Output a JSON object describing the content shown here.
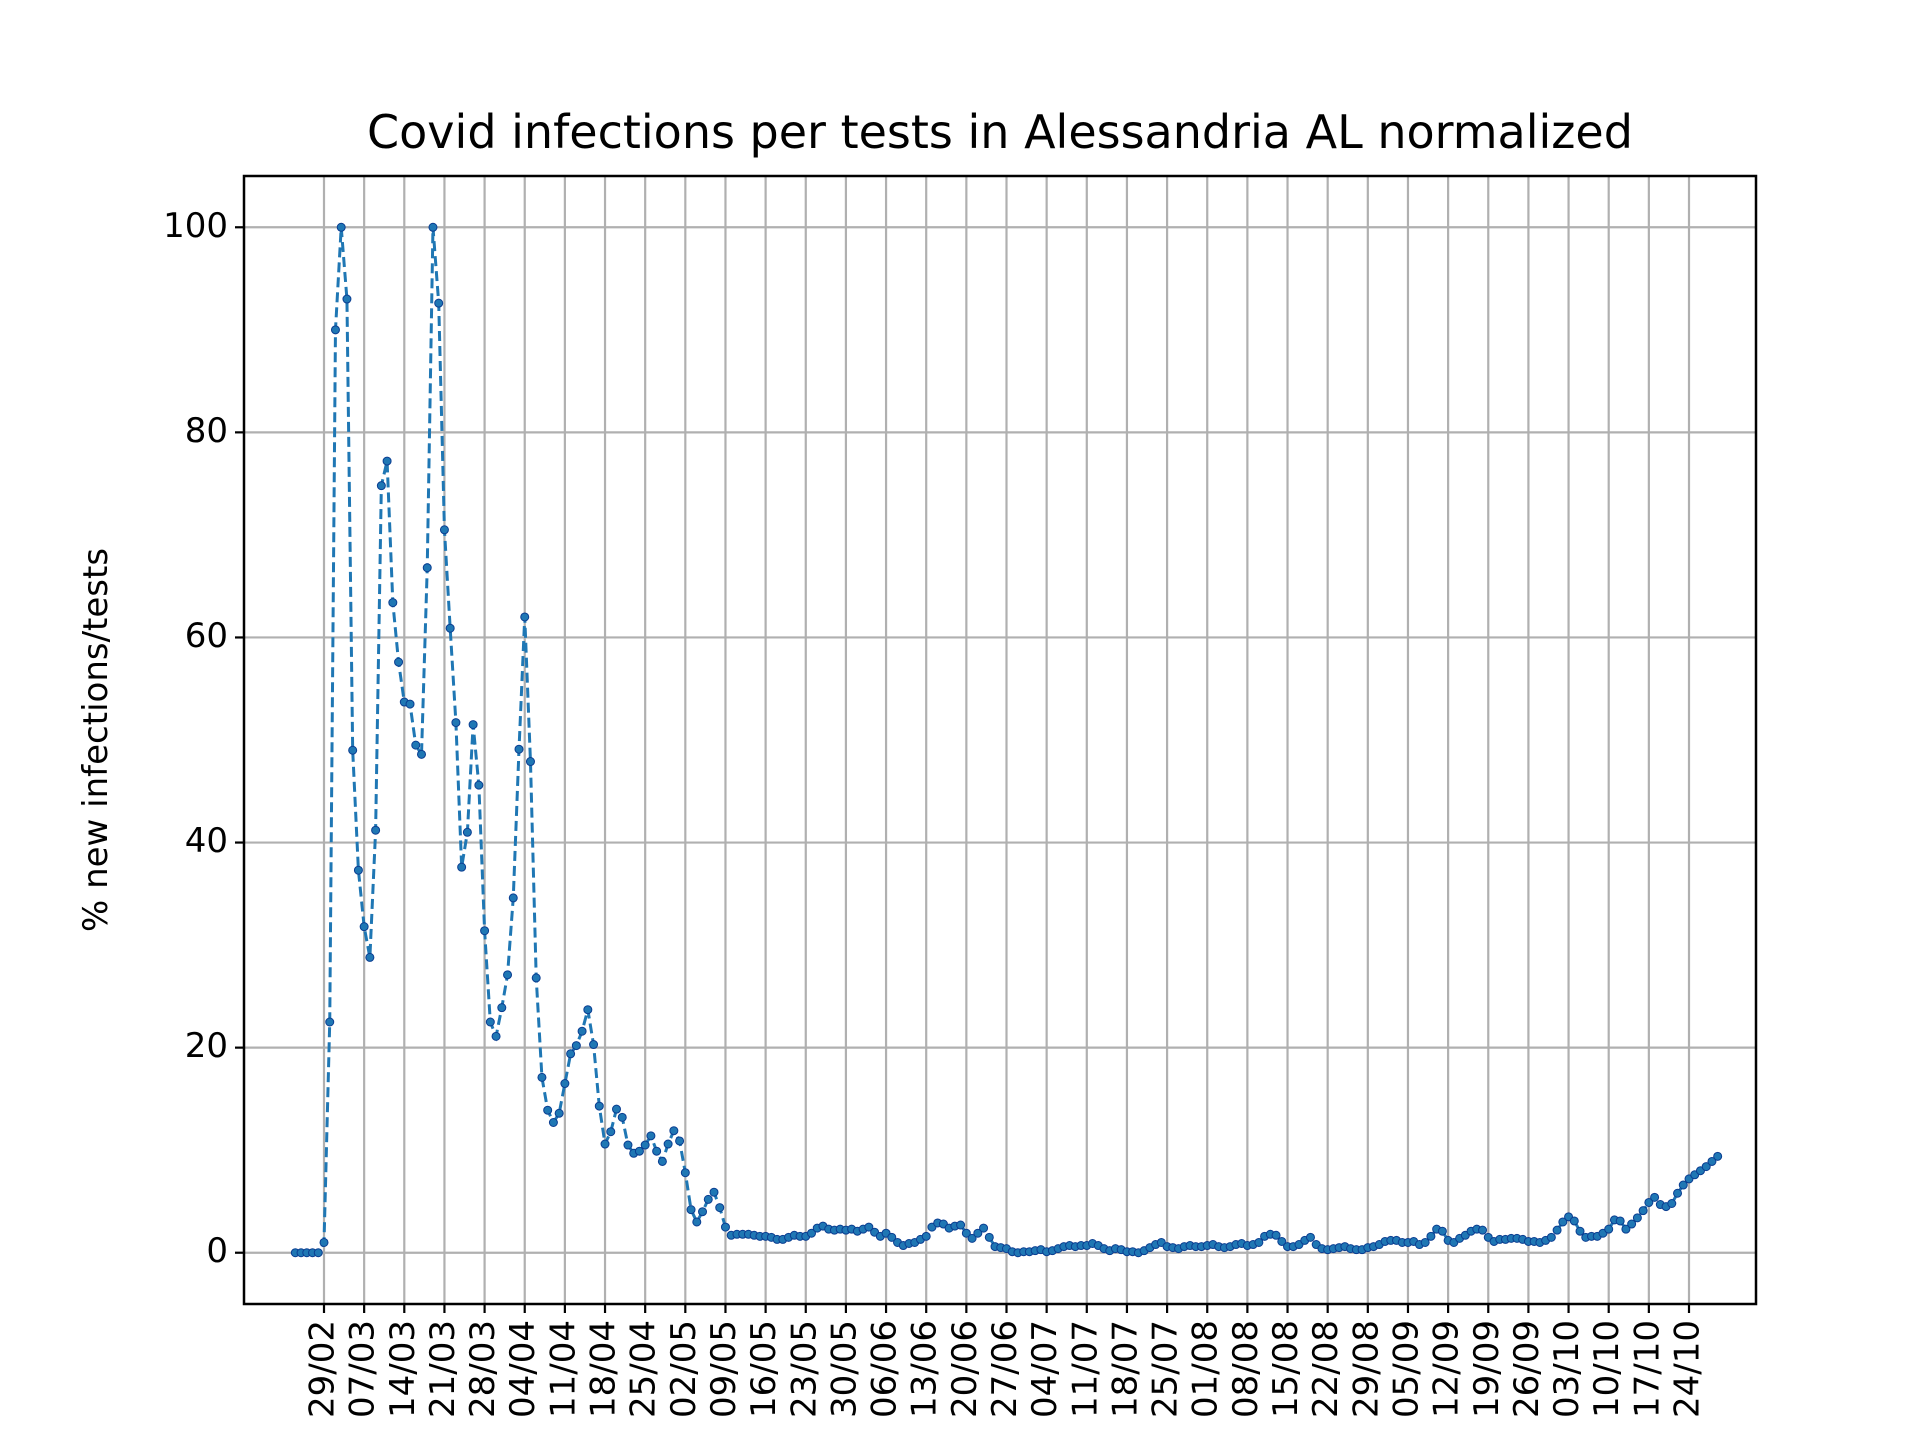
{
  "chart_data": {
    "type": "line",
    "title": "Covid infections per tests in Alessandria AL normalized",
    "ylabel": "% new infections/tests",
    "xlabel": "",
    "ylim": [
      -5,
      105
    ],
    "yticks": [
      0,
      20,
      40,
      60,
      80,
      100
    ],
    "grid": true,
    "start_date": "2020-02-24",
    "xtick_labels": [
      "29/02",
      "07/03",
      "14/03",
      "21/03",
      "28/03",
      "04/04",
      "11/04",
      "18/04",
      "25/04",
      "02/05",
      "09/05",
      "16/05",
      "23/05",
      "30/05",
      "06/06",
      "13/06",
      "20/06",
      "27/06",
      "04/07",
      "11/07",
      "18/07",
      "25/07",
      "01/08",
      "08/08",
      "15/08",
      "22/08",
      "29/08",
      "05/09",
      "12/09",
      "19/09",
      "26/09",
      "03/10",
      "10/10",
      "17/10",
      "24/10"
    ],
    "series": [
      {
        "name": "",
        "color": "#1f77b4",
        "marker": "point",
        "linestyle": "dashed",
        "values": [
          0,
          0,
          0,
          0,
          0,
          1.0,
          22.5,
          90,
          100,
          93,
          49,
          37.3,
          31.8,
          28.8,
          41.2,
          74.8,
          77.2,
          63.4,
          57.6,
          53.7,
          53.5,
          49.5,
          48.6,
          66.8,
          100,
          92.6,
          70.5,
          60.9,
          51.7,
          37.6,
          41.0,
          51.5,
          45.6,
          31.4,
          22.5,
          21.1,
          23.9,
          27.1,
          34.6,
          49.1,
          62.0,
          47.9,
          26.8,
          17.1,
          13.9,
          12.7,
          13.6,
          16.5,
          19.4,
          20.2,
          21.6,
          23.7,
          20.3,
          14.3,
          10.6,
          11.8,
          14.0,
          13.2,
          10.5,
          9.7,
          9.9,
          10.5,
          11.4,
          9.9,
          8.9,
          10.6,
          11.9,
          10.9,
          7.8,
          4.2,
          3.0,
          4.0,
          5.2,
          5.9,
          4.4,
          2.5,
          1.7,
          1.8,
          1.8,
          1.8,
          1.7,
          1.6,
          1.6,
          1.5,
          1.3,
          1.3,
          1.5,
          1.7,
          1.6,
          1.6,
          1.9,
          2.4,
          2.6,
          2.3,
          2.2,
          2.3,
          2.2,
          2.3,
          2.1,
          2.3,
          2.5,
          2.0,
          1.6,
          1.9,
          1.5,
          1.0,
          0.7,
          0.9,
          1.0,
          1.3,
          1.6,
          2.5,
          2.9,
          2.8,
          2.4,
          2.6,
          2.7,
          1.9,
          1.4,
          1.9,
          2.4,
          1.5,
          0.6,
          0.5,
          0.4,
          0.1,
          0,
          0.1,
          0.1,
          0.2,
          0.3,
          0.1,
          0.2,
          0.4,
          0.6,
          0.7,
          0.6,
          0.7,
          0.7,
          0.9,
          0.7,
          0.4,
          0.2,
          0.4,
          0.3,
          0.1,
          0.1,
          0.0,
          0.2,
          0.5,
          0.8,
          1.0,
          0.6,
          0.5,
          0.4,
          0.6,
          0.7,
          0.6,
          0.6,
          0.7,
          0.8,
          0.6,
          0.5,
          0.6,
          0.8,
          0.9,
          0.7,
          0.8,
          1.0,
          1.6,
          1.8,
          1.7,
          1.1,
          0.6,
          0.6,
          0.8,
          1.2,
          1.5,
          0.8,
          0.4,
          0.3,
          0.4,
          0.5,
          0.6,
          0.4,
          0.3,
          0.3,
          0.5,
          0.6,
          0.8,
          1.1,
          1.2,
          1.2,
          1.0,
          1.0,
          1.1,
          0.8,
          1.0,
          1.6,
          2.3,
          2.1,
          1.2,
          1.0,
          1.4,
          1.7,
          2.1,
          2.3,
          2.2,
          1.5,
          1.1,
          1.3,
          1.3,
          1.4,
          1.4,
          1.3,
          1.1,
          1.1,
          1.0,
          1.2,
          1.5,
          2.2,
          3.0,
          3.5,
          3.1,
          2.1,
          1.5,
          1.6,
          1.6,
          1.9,
          2.3,
          3.2,
          3.1,
          2.3,
          2.8,
          3.4,
          4.1,
          4.9,
          5.4,
          4.7,
          4.5,
          4.8,
          5.8,
          6.6,
          7.2,
          7.6,
          8.0,
          8.4,
          8.9,
          9.4
        ]
      }
    ]
  }
}
